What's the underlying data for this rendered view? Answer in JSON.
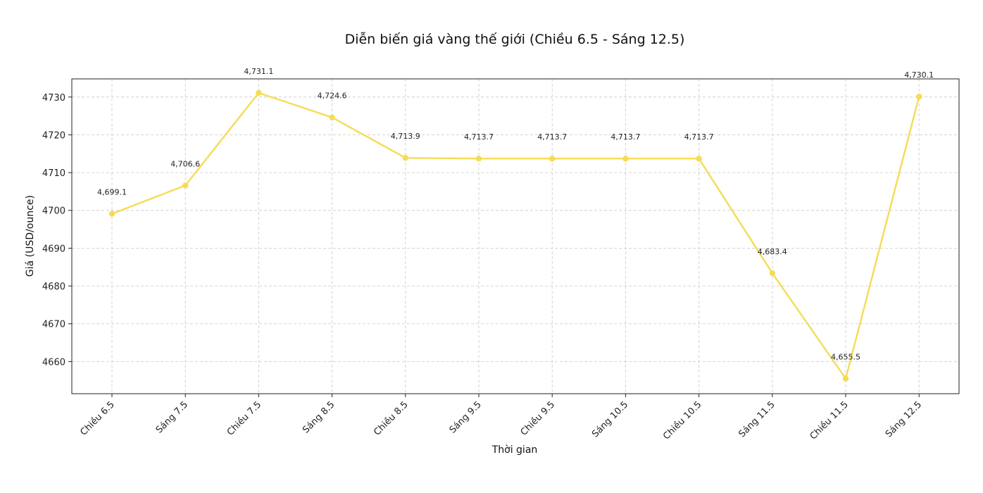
{
  "chart_data": {
    "type": "line",
    "title": "Diễn biến giá vàng thế giới (Chiều 6.5 - Sáng 12.5)",
    "xlabel": "Thời gian",
    "ylabel": "Giá (USD/ounce)",
    "categories": [
      "Chiều 6.5",
      "Sáng 7.5",
      "Chiều 7.5",
      "Sáng 8.5",
      "Chiều 8.5",
      "Sáng 9.5",
      "Chiều 9.5",
      "Sáng 10.5",
      "Chiều 10.5",
      "Sáng 11.5",
      "Chiều 11.5",
      "Sáng 12.5"
    ],
    "series": [
      {
        "values": [
          4699.1,
          4706.6,
          4731.1,
          4724.6,
          4713.9,
          4713.7,
          4713.7,
          4713.7,
          4713.7,
          4683.4,
          4655.5,
          4730.1
        ],
        "labels": [
          "4,699.1",
          "4,706.6",
          "4,731.1",
          "4,724.6",
          "4,713.9",
          "4,713.7",
          "4,713.7",
          "4,713.7",
          "4,713.7",
          "4,683.4",
          "4,655.5",
          "4,730.1"
        ]
      }
    ],
    "yticks": [
      4660,
      4670,
      4680,
      4690,
      4700,
      4710,
      4720,
      4730
    ],
    "ylim": [
      4651.5,
      4734.8
    ],
    "grid": true,
    "line_color": "#f5dc55"
  }
}
